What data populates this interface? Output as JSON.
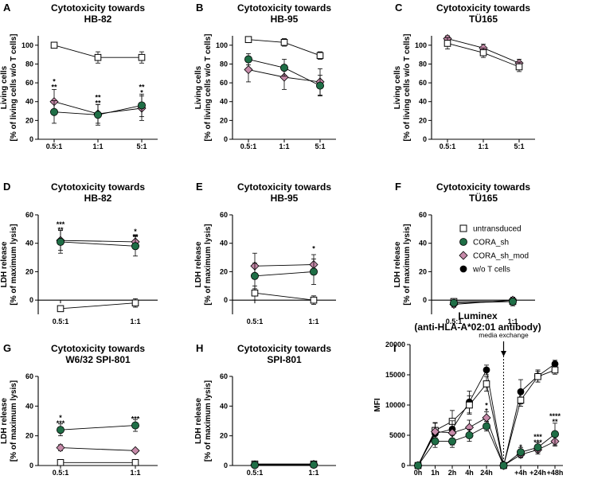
{
  "colors": {
    "untransduced": "#ffffff",
    "cora_sh": "#1f6e46",
    "cora_sh_mod": "#c68aa9",
    "wo_t_cells": "#000000",
    "star_green": "#1f6e46",
    "star_pink": "#c76e98"
  },
  "legend": [
    {
      "key": "untransduced",
      "label": "untransduced",
      "marker": "square"
    },
    {
      "key": "cora_sh",
      "label": "CORA_sh",
      "marker": "circle"
    },
    {
      "key": "cora_sh_mod",
      "label": "CORA_sh_mod",
      "marker": "diamond"
    },
    {
      "key": "wo_t_cells",
      "label": "w/o T cells",
      "marker": "circle"
    }
  ],
  "chart_data": [
    {
      "panel": "A",
      "type": "line",
      "title": [
        "Cytotoxicity towards",
        "HB-82"
      ],
      "ylabel": [
        "Living cells",
        "[% of living cells w/o T cells]"
      ],
      "categories": [
        "0.5:1",
        "1:1",
        "5:1"
      ],
      "ylim": [
        0,
        110
      ],
      "yticks": [
        0,
        20,
        40,
        60,
        80,
        100
      ],
      "xticks": [
        0,
        1,
        2
      ],
      "series": [
        {
          "key": "untransduced",
          "x": [
            0,
            1,
            2
          ],
          "values": [
            100,
            87,
            87
          ],
          "err": [
            3,
            6,
            6
          ]
        },
        {
          "key": "cora_sh_mod",
          "x": [
            0,
            1,
            2
          ],
          "values": [
            40,
            27,
            33
          ],
          "err": [
            13,
            10,
            13
          ]
        },
        {
          "key": "cora_sh",
          "x": [
            0,
            1,
            2
          ],
          "values": [
            29,
            26,
            36
          ],
          "err": [
            12,
            11,
            12
          ]
        }
      ],
      "stars": [
        {
          "x": 0,
          "value": 58,
          "pink": "*",
          "green": "**"
        },
        {
          "x": 1,
          "value": 41,
          "pink": "**",
          "green": "**"
        },
        {
          "x": 2,
          "value": 52,
          "pink": "**",
          "green": "*"
        }
      ]
    },
    {
      "panel": "B",
      "type": "line",
      "title": [
        "Cytotoxicity towards",
        "HB-95"
      ],
      "ylabel": [
        "Living cells",
        "[% of living cells w/o T cells]"
      ],
      "categories": [
        "0.5:1",
        "1:1",
        "5:1"
      ],
      "ylim": [
        0,
        110
      ],
      "yticks": [
        0,
        20,
        40,
        60,
        80,
        100
      ],
      "xticks": [
        0,
        1,
        2
      ],
      "series": [
        {
          "key": "untransduced",
          "x": [
            0,
            1,
            2
          ],
          "values": [
            106,
            103,
            89
          ],
          "err": [
            3,
            4,
            4
          ]
        },
        {
          "key": "cora_sh_mod",
          "x": [
            0,
            1,
            2
          ],
          "values": [
            74,
            66,
            61
          ],
          "err": [
            13,
            13,
            14
          ]
        },
        {
          "key": "cora_sh",
          "x": [
            0,
            1,
            2
          ],
          "values": [
            85,
            76,
            57
          ],
          "err": [
            6,
            9,
            11
          ]
        }
      ],
      "stars": []
    },
    {
      "panel": "C",
      "type": "line",
      "title": [
        "Cytotoxicity towards",
        "TÜ165"
      ],
      "ylabel": [
        "Living cells",
        "[% of living cells w/o T cells]"
      ],
      "categories": [
        "0.5:1",
        "1:1",
        "5:1"
      ],
      "ylim": [
        0,
        110
      ],
      "yticks": [
        0,
        20,
        40,
        60,
        80,
        100
      ],
      "xticks": [
        0,
        1,
        2
      ],
      "series": [
        {
          "key": "cora_sh_mod",
          "x": [
            0,
            1,
            2
          ],
          "values": [
            107,
            97,
            81
          ],
          "err": [
            3,
            4,
            4
          ]
        },
        {
          "key": "untransduced",
          "x": [
            0,
            1,
            2
          ],
          "values": [
            102,
            92,
            77
          ],
          "err": [
            6,
            5,
            5
          ]
        }
      ],
      "stars": []
    },
    {
      "panel": "D",
      "type": "line",
      "title": [
        "Cytotoxicity towards",
        "HB-82"
      ],
      "ylabel": [
        "LDH release",
        "[% of maximum lysis]"
      ],
      "categories": [
        "0.5:1",
        "1:1"
      ],
      "ylim": [
        -10,
        60
      ],
      "yticks": [
        0,
        20,
        40,
        60
      ],
      "xticks": [
        0,
        1
      ],
      "series": [
        {
          "key": "untransduced",
          "x": [
            0,
            1
          ],
          "values": [
            -6,
            -2
          ],
          "err": [
            2,
            3
          ]
        },
        {
          "key": "cora_sh_mod",
          "x": [
            0,
            1
          ],
          "values": [
            42,
            41
          ],
          "err": [
            7,
            5
          ]
        },
        {
          "key": "cora_sh",
          "x": [
            0,
            1
          ],
          "values": [
            41,
            38
          ],
          "err": [
            8,
            7
          ]
        }
      ],
      "stars": [
        {
          "x": 0,
          "value": 51,
          "pink": "***",
          "green": "**"
        },
        {
          "x": 1,
          "value": 46,
          "pink": "*",
          "green": "**"
        }
      ]
    },
    {
      "panel": "E",
      "type": "line",
      "title": [
        "Cytotoxicity towards",
        "HB-95"
      ],
      "ylabel": [
        "LDH release",
        "[% of maximum lysis]"
      ],
      "categories": [
        "0.5:1",
        "1:1"
      ],
      "ylim": [
        -10,
        60
      ],
      "yticks": [
        0,
        20,
        40,
        60
      ],
      "xticks": [
        0,
        1
      ],
      "series": [
        {
          "key": "untransduced",
          "x": [
            0,
            1
          ],
          "values": [
            5,
            0
          ],
          "err": [
            5,
            3
          ]
        },
        {
          "key": "cora_sh_mod",
          "x": [
            0,
            1
          ],
          "values": [
            24,
            25
          ],
          "err": [
            9,
            7
          ]
        },
        {
          "key": "cora_sh",
          "x": [
            0,
            1
          ],
          "values": [
            17,
            20
          ],
          "err": [
            9,
            9
          ]
        }
      ],
      "stars": [
        {
          "x": 1,
          "value": 34,
          "pink": "*",
          "green": ""
        }
      ]
    },
    {
      "panel": "F",
      "type": "line",
      "title": [
        "Cytotoxicity towards",
        "TÜ165"
      ],
      "ylabel": [
        "LDH release",
        "[% of maximum lysis]"
      ],
      "categories": [
        "0.5:1",
        "1:1"
      ],
      "ylim": [
        -10,
        60
      ],
      "yticks": [
        0,
        20,
        40,
        60
      ],
      "xticks": [
        0,
        1
      ],
      "series": [
        {
          "key": "untransduced",
          "x": [
            0,
            1
          ],
          "values": [
            -1,
            -1
          ],
          "err": [
            2,
            3
          ]
        },
        {
          "key": "cora_sh_mod",
          "x": [
            0,
            1
          ],
          "values": [
            -3,
            0
          ],
          "err": [
            2,
            2
          ]
        },
        {
          "key": "cora_sh",
          "x": [
            0,
            1
          ],
          "values": [
            -2,
            -1
          ],
          "err": [
            2,
            2
          ]
        }
      ],
      "stars": []
    },
    {
      "panel": "G",
      "type": "line",
      "title": [
        "Cytotoxicity towards",
        "W6/32 SPI-801"
      ],
      "ylabel": [
        "LDH release",
        "[% of maximum lysis]"
      ],
      "categories": [
        "0.5:1",
        "1:1"
      ],
      "ylim": [
        0,
        60
      ],
      "yticks": [
        0,
        20,
        40,
        60
      ],
      "xticks": [
        0,
        1
      ],
      "series": [
        {
          "key": "untransduced",
          "x": [
            0,
            1
          ],
          "values": [
            2,
            2
          ],
          "err": [
            2,
            1
          ]
        },
        {
          "key": "cora_sh_mod",
          "x": [
            0,
            1
          ],
          "values": [
            12,
            10
          ],
          "err": [
            2,
            1
          ]
        },
        {
          "key": "cora_sh",
          "x": [
            0,
            1
          ],
          "values": [
            24,
            27
          ],
          "err": [
            4,
            4
          ]
        }
      ],
      "stars": [
        {
          "x": 0,
          "value": 30,
          "pink": "*",
          "green": "***"
        },
        {
          "x": 1,
          "value": 33,
          "pink": "",
          "green": "***"
        }
      ]
    },
    {
      "panel": "H",
      "type": "line",
      "title": [
        "Cytotoxicity towards",
        "SPI-801"
      ],
      "ylabel": [
        "LDH release",
        "[% of maximum lysis]"
      ],
      "categories": [
        "0.5:1",
        "1:1"
      ],
      "ylim": [
        0,
        60
      ],
      "yticks": [
        0,
        20,
        40,
        60
      ],
      "xticks": [
        0,
        1
      ],
      "series": [
        {
          "key": "untransduced",
          "x": [
            0,
            1
          ],
          "values": [
            1,
            1
          ],
          "err": [
            1,
            1
          ]
        },
        {
          "key": "cora_sh_mod",
          "x": [
            0,
            1
          ],
          "values": [
            0.5,
            0.8
          ],
          "err": [
            1,
            1
          ]
        },
        {
          "key": "cora_sh",
          "x": [
            0,
            1
          ],
          "values": [
            0.3,
            0.5
          ],
          "err": [
            1,
            1
          ]
        }
      ],
      "stars": []
    },
    {
      "panel": "I",
      "type": "line",
      "title": [
        "Luminex",
        "(anti-HLA-A*02:01 antibody)"
      ],
      "ylabel": [
        "MFI"
      ],
      "categories": [
        "0h",
        "1h",
        "2h",
        "4h",
        "24h",
        "",
        "+4h",
        "+24h",
        "+48h"
      ],
      "ylim": [
        0,
        20000
      ],
      "yticks": [
        0,
        5000,
        10000,
        15000,
        20000
      ],
      "xticks": [
        0,
        1,
        2,
        3,
        4,
        5,
        6,
        7,
        8
      ],
      "annotation": {
        "label": "media exchange",
        "x": 5
      },
      "segments": [
        [
          0,
          5
        ],
        [
          5,
          8
        ]
      ],
      "series": [
        {
          "key": "wo_t_cells",
          "x": [
            0,
            1,
            2,
            3,
            4,
            5,
            6,
            7,
            8
          ],
          "values": [
            0,
            5300,
            6000,
            10500,
            15800,
            0,
            12200,
            14800,
            16800
          ],
          "err": [
            0,
            1000,
            1500,
            1800,
            800,
            0,
            2000,
            1000,
            600
          ]
        },
        {
          "key": "untransduced",
          "x": [
            0,
            1,
            2,
            3,
            4,
            5,
            6,
            7,
            8
          ],
          "values": [
            0,
            5800,
            7300,
            10000,
            13500,
            0,
            10800,
            14700,
            15800
          ],
          "err": [
            0,
            1200,
            1800,
            1500,
            1200,
            0,
            1000,
            900,
            700
          ]
        },
        {
          "key": "cora_sh_mod",
          "x": [
            0,
            1,
            2,
            3,
            4,
            5,
            6,
            7,
            8
          ],
          "values": [
            0,
            5600,
            5400,
            6300,
            7900,
            0,
            1800,
            2600,
            4000
          ],
          "err": [
            0,
            1500,
            2000,
            1200,
            1000,
            0,
            500,
            700,
            800
          ]
        },
        {
          "key": "cora_sh",
          "x": [
            0,
            1,
            2,
            3,
            4,
            5,
            6,
            7,
            8
          ],
          "values": [
            0,
            4000,
            4000,
            5000,
            6500,
            0,
            2200,
            3000,
            5200
          ],
          "err": [
            0,
            1000,
            1000,
            1000,
            800,
            0,
            800,
            800,
            1800
          ]
        }
      ],
      "stars": [
        {
          "x": 4,
          "value": 9400,
          "pink": "*",
          "green": "*"
        },
        {
          "x": 6,
          "value": 3400,
          "pink": "",
          "green": "*"
        },
        {
          "x": 7,
          "value": 4200,
          "pink": "***",
          "green": "***"
        },
        {
          "x": 8,
          "value": 7600,
          "pink": "****",
          "green": "**"
        }
      ]
    }
  ]
}
